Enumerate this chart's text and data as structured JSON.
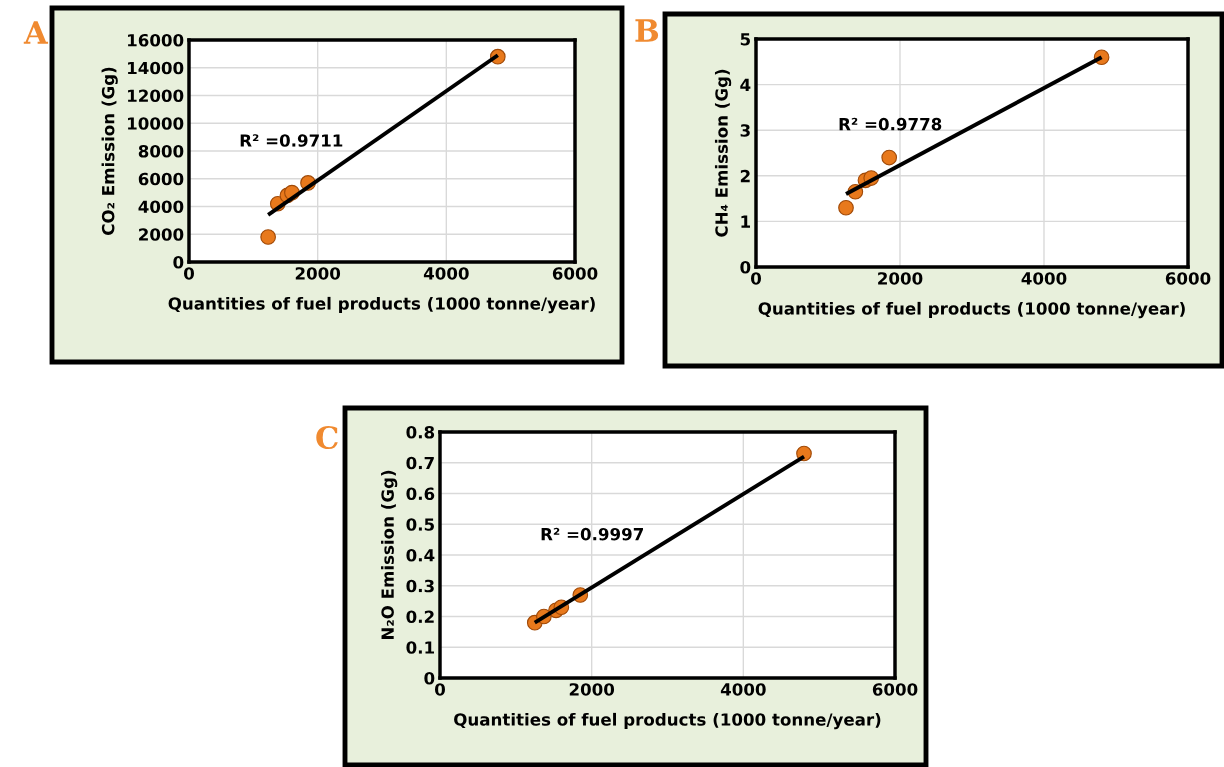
{
  "chart_data": [
    {
      "type": "scatter",
      "xlabel": "Quantities of fuel products (1000 tonne/year)",
      "ylabel": "CO₂ Emission (Gg)",
      "annotations": [
        "A",
        "R² =0.9711"
      ],
      "xlim": [
        0,
        6000
      ],
      "xticks": [
        0,
        2000,
        4000,
        6000
      ],
      "ylim": [
        0,
        16000
      ],
      "yticks": [
        0,
        2000,
        4000,
        6000,
        8000,
        10000,
        12000,
        14000,
        16000
      ],
      "grid": true,
      "marker": "circle",
      "series": [
        {
          "color": "#e8791c",
          "x": [
            1230,
            1380,
            1530,
            1600,
            1850,
            4800
          ],
          "values": [
            1800,
            4200,
            4800,
            5000,
            5700,
            14800
          ]
        },
        {
          "type": "line",
          "marker": "none",
          "color": "#000000",
          "x": [
            1230,
            4800
          ],
          "values": [
            3400,
            14900
          ]
        }
      ]
    },
    {
      "type": "scatter",
      "xlabel": "Quantities of fuel products (1000 tonne/year)",
      "ylabel": "CH₄ Emission (Gg)",
      "annotations": [
        "B",
        "R² =0.9778"
      ],
      "xlim": [
        0,
        6000
      ],
      "xticks": [
        0,
        2000,
        4000,
        6000
      ],
      "ylim": [
        0,
        5
      ],
      "yticks": [
        0,
        1,
        2,
        3,
        4,
        5
      ],
      "grid": true,
      "marker": "circle",
      "series": [
        {
          "color": "#e8791c",
          "x": [
            1250,
            1380,
            1520,
            1600,
            1850,
            4800
          ],
          "values": [
            1.3,
            1.65,
            1.9,
            1.95,
            2.4,
            4.6
          ]
        },
        {
          "type": "line",
          "marker": "none",
          "color": "#000000",
          "x": [
            1250,
            4800
          ],
          "values": [
            1.6,
            4.6
          ]
        }
      ]
    },
    {
      "type": "scatter",
      "xlabel": "Quantities of fuel products (1000 tonne/year)",
      "ylabel": "N₂O Emission (Gg)",
      "annotations": [
        "C",
        "R² =0.9997"
      ],
      "xlim": [
        0,
        6000
      ],
      "xticks": [
        0,
        2000,
        4000,
        6000
      ],
      "ylim": [
        0,
        0.8
      ],
      "yticks": [
        0,
        0.1,
        0.2,
        0.3,
        0.4,
        0.5,
        0.6,
        0.7,
        0.8
      ],
      "grid": true,
      "marker": "circle",
      "series": [
        {
          "color": "#e8791c",
          "x": [
            1250,
            1370,
            1530,
            1600,
            1850,
            4800
          ],
          "values": [
            0.18,
            0.2,
            0.22,
            0.23,
            0.27,
            0.73
          ]
        },
        {
          "type": "line",
          "marker": "none",
          "color": "#000000",
          "x": [
            1250,
            4800
          ],
          "values": [
            0.18,
            0.72
          ]
        }
      ]
    }
  ]
}
